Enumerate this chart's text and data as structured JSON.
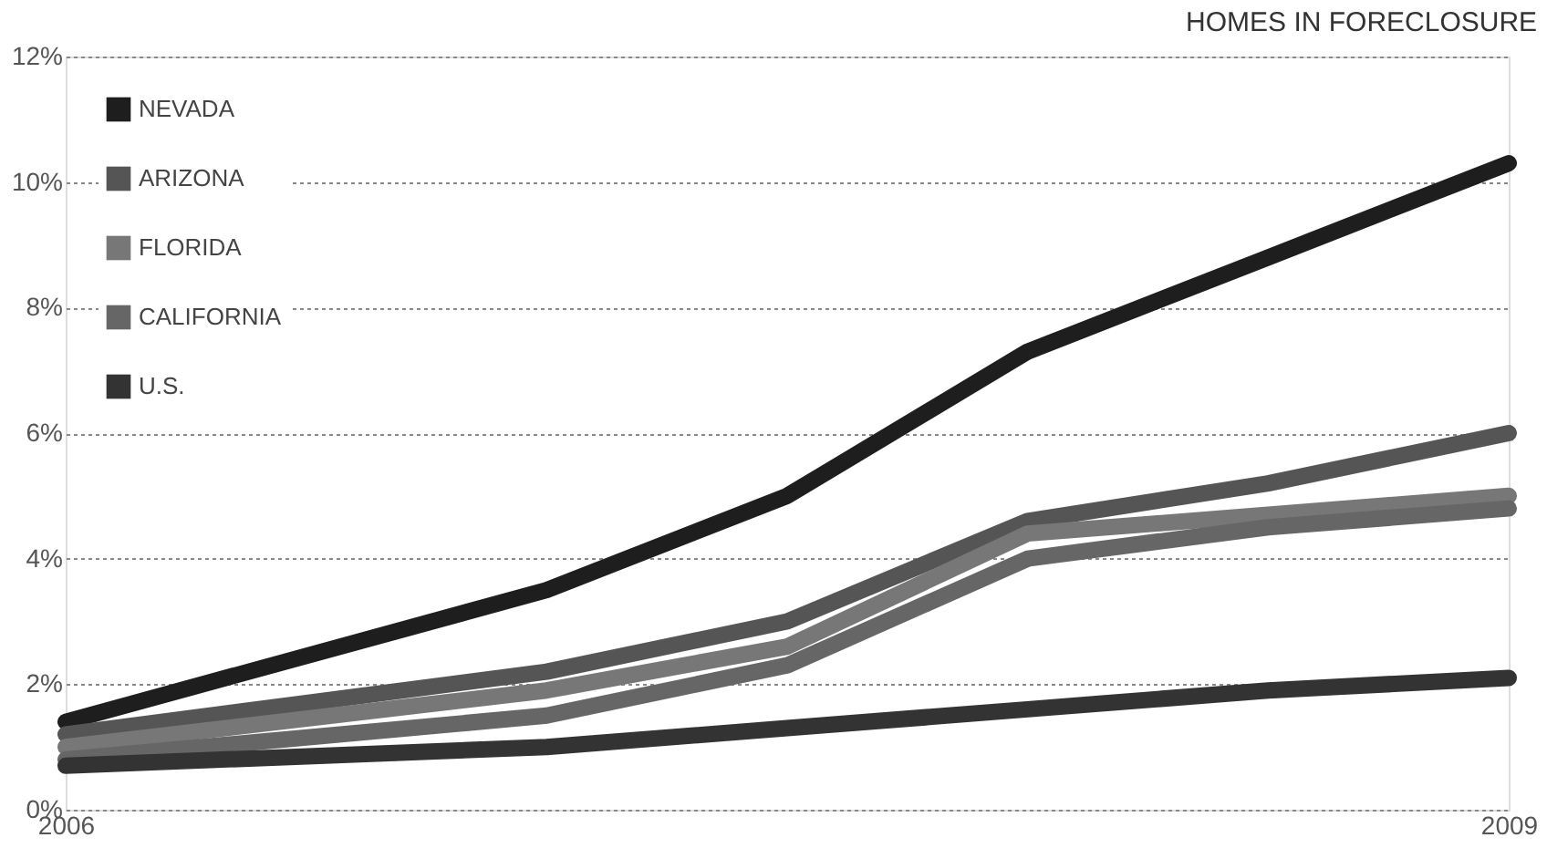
{
  "chart_data": {
    "type": "line",
    "title": "HOMES IN FORECLOSURE",
    "x": [
      2006,
      2007,
      2007.5,
      2008,
      2008.5,
      2009
    ],
    "xlim": [
      2006,
      2009
    ],
    "xticks": [
      2006,
      2009
    ],
    "ylim": [
      0,
      12
    ],
    "yticks": [
      {
        "value": 0,
        "label": "0%"
      },
      {
        "value": 2,
        "label": "2%"
      },
      {
        "value": 4,
        "label": "4%"
      },
      {
        "value": 6,
        "label": "6%"
      },
      {
        "value": 8,
        "label": "8%"
      },
      {
        "value": 10,
        "label": "10%"
      },
      {
        "value": 12,
        "label": "12%"
      }
    ],
    "grid": "y",
    "legend": "top left",
    "line_style": "solid",
    "marker": "none",
    "series": [
      {
        "name": "NEVADA",
        "color": "#1e1e1e",
        "values": [
          1.4,
          3.5,
          5.0,
          7.3,
          8.8,
          10.3
        ]
      },
      {
        "name": "ARIZONA",
        "color": "#555555",
        "values": [
          1.2,
          2.2,
          3.0,
          4.6,
          5.2,
          6.0
        ]
      },
      {
        "name": "FLORIDA",
        "color": "#777777",
        "values": [
          1.0,
          1.9,
          2.6,
          4.4,
          4.7,
          5.0
        ]
      },
      {
        "name": "CALIFORNIA",
        "color": "#666666",
        "values": [
          0.8,
          1.5,
          2.3,
          4.0,
          4.5,
          4.8
        ]
      },
      {
        "name": "U.S.",
        "color": "#333333",
        "values": [
          0.7,
          1.0,
          1.3,
          1.6,
          1.9,
          2.1
        ]
      }
    ]
  }
}
